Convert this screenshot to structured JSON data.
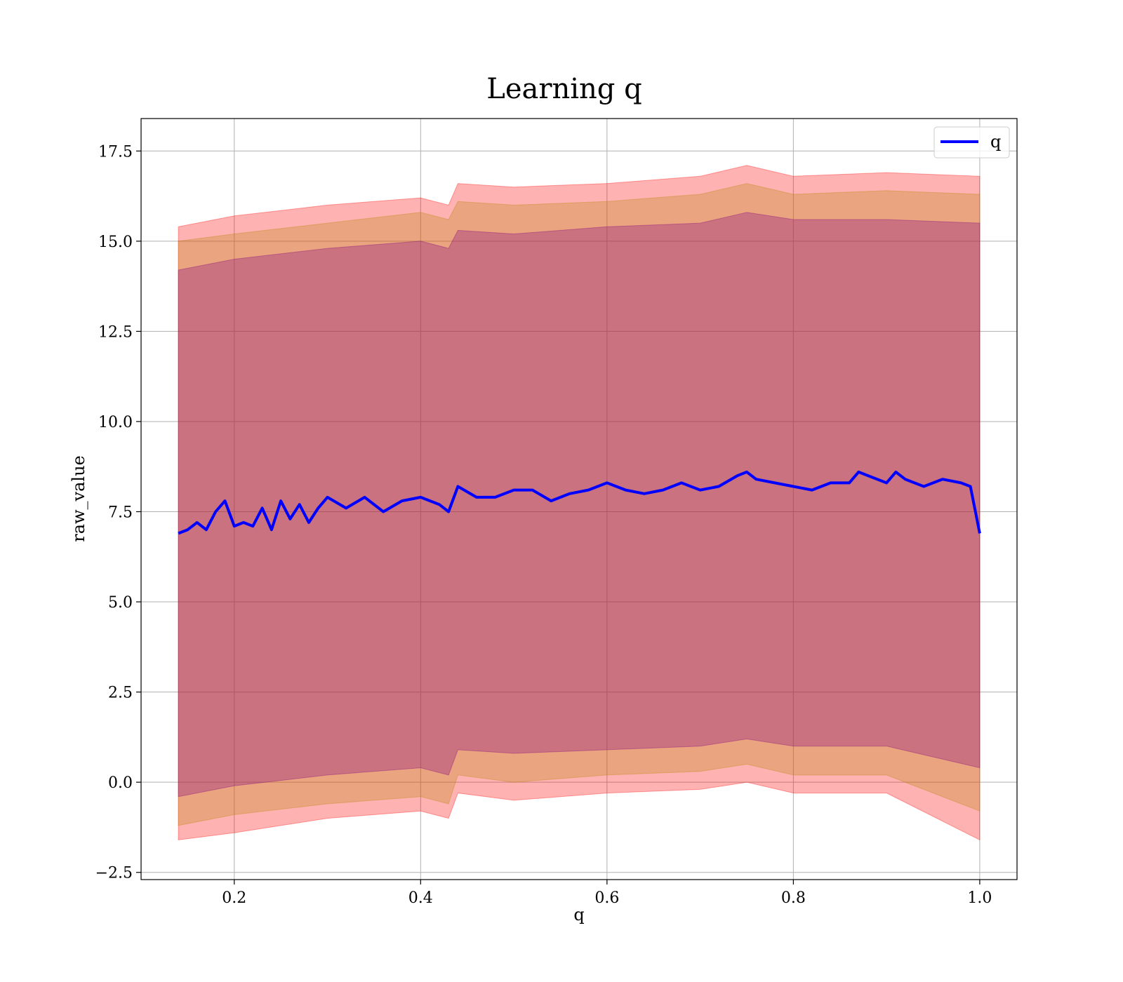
{
  "chart_data": {
    "type": "line",
    "title": "Learning q",
    "xlabel": "q",
    "ylabel": "raw_value",
    "xlim": [
      0.1,
      1.04
    ],
    "ylim": [
      -2.7,
      18.4
    ],
    "xticks": [
      0.2,
      0.4,
      0.6,
      0.8,
      1.0
    ],
    "xtick_labels": [
      "0.2",
      "0.4",
      "0.6",
      "0.8",
      "1.0"
    ],
    "yticks": [
      -2.5,
      0.0,
      2.5,
      5.0,
      7.5,
      10.0,
      12.5,
      15.0,
      17.5
    ],
    "ytick_labels": [
      "−2.5",
      "0.0",
      "2.5",
      "5.0",
      "7.5",
      "10.0",
      "12.5",
      "15.0",
      "17.5"
    ],
    "grid": true,
    "legend": {
      "position": "top-right",
      "entries": [
        {
          "label": "q",
          "color": "#0000ff"
        }
      ]
    },
    "series": [
      {
        "name": "q",
        "color": "#0000ff",
        "x": [
          0.14,
          0.15,
          0.16,
          0.17,
          0.18,
          0.19,
          0.2,
          0.21,
          0.22,
          0.23,
          0.24,
          0.25,
          0.26,
          0.27,
          0.28,
          0.29,
          0.3,
          0.32,
          0.34,
          0.36,
          0.38,
          0.4,
          0.42,
          0.43,
          0.44,
          0.46,
          0.48,
          0.5,
          0.52,
          0.54,
          0.56,
          0.58,
          0.6,
          0.62,
          0.64,
          0.66,
          0.68,
          0.7,
          0.72,
          0.74,
          0.75,
          0.76,
          0.78,
          0.8,
          0.82,
          0.84,
          0.86,
          0.87,
          0.88,
          0.9,
          0.91,
          0.92,
          0.94,
          0.96,
          0.98,
          0.99,
          1.0
        ],
        "y": [
          6.9,
          7.0,
          7.2,
          7.0,
          7.5,
          7.8,
          7.1,
          7.2,
          7.1,
          7.6,
          7.0,
          7.8,
          7.3,
          7.7,
          7.2,
          7.6,
          7.9,
          7.6,
          7.9,
          7.5,
          7.8,
          7.9,
          7.7,
          7.5,
          8.2,
          7.9,
          7.9,
          8.1,
          8.1,
          7.8,
          8.0,
          8.1,
          8.3,
          8.1,
          8.0,
          8.1,
          8.3,
          8.1,
          8.2,
          8.5,
          8.6,
          8.4,
          8.3,
          8.2,
          8.1,
          8.3,
          8.3,
          8.6,
          8.5,
          8.3,
          8.6,
          8.4,
          8.2,
          8.4,
          8.3,
          8.2,
          6.9
        ]
      }
    ],
    "bands": [
      {
        "color": "#ff0000",
        "opacity": 0.3,
        "x": [
          0.14,
          0.2,
          0.3,
          0.4,
          0.43,
          0.44,
          0.5,
          0.6,
          0.7,
          0.75,
          0.8,
          0.9,
          1.0
        ],
        "upper": [
          15.4,
          15.7,
          16.0,
          16.2,
          16.0,
          16.6,
          16.5,
          16.6,
          16.8,
          17.1,
          16.8,
          16.9,
          16.8
        ],
        "lower": [
          -1.6,
          -1.4,
          -1.0,
          -0.8,
          -1.0,
          -0.3,
          -0.5,
          -0.3,
          -0.2,
          0.0,
          -0.3,
          -0.3,
          -1.6
        ]
      },
      {
        "color": "#b8860b",
        "opacity": 0.3,
        "x": [
          0.14,
          0.2,
          0.3,
          0.4,
          0.43,
          0.44,
          0.5,
          0.6,
          0.7,
          0.75,
          0.8,
          0.9,
          1.0
        ],
        "upper": [
          15.0,
          15.2,
          15.5,
          15.8,
          15.6,
          16.1,
          16.0,
          16.1,
          16.3,
          16.6,
          16.3,
          16.4,
          16.3
        ],
        "lower": [
          -1.2,
          -0.9,
          -0.6,
          -0.4,
          -0.6,
          0.2,
          0.0,
          0.2,
          0.3,
          0.5,
          0.2,
          0.2,
          -0.8
        ]
      },
      {
        "color": "#800080",
        "opacity": 0.3,
        "x": [
          0.14,
          0.2,
          0.3,
          0.4,
          0.43,
          0.44,
          0.5,
          0.6,
          0.7,
          0.75,
          0.8,
          0.9,
          1.0
        ],
        "upper": [
          14.2,
          14.5,
          14.8,
          15.0,
          14.8,
          15.3,
          15.2,
          15.4,
          15.5,
          15.8,
          15.6,
          15.6,
          15.5
        ],
        "lower": [
          -0.4,
          -0.1,
          0.2,
          0.4,
          0.2,
          0.9,
          0.8,
          0.9,
          1.0,
          1.2,
          1.0,
          1.0,
          0.4
        ]
      }
    ]
  }
}
